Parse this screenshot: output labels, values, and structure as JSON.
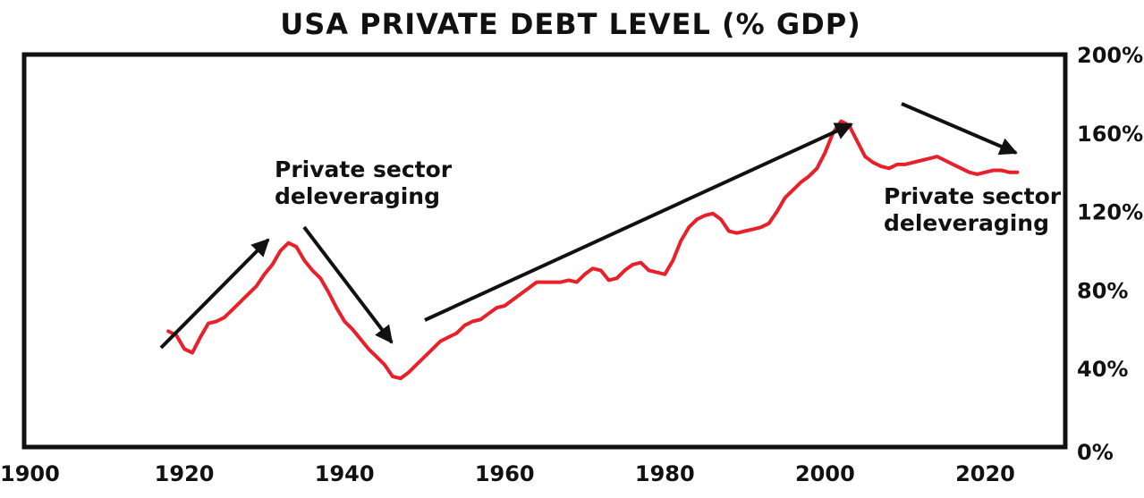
{
  "chart_data": {
    "type": "line",
    "title": "USA PRIVATE DEBT LEVEL (% GDP)",
    "xlabel": "",
    "ylabel": "",
    "xlim": [
      1900,
      2030
    ],
    "ylim": [
      0,
      200
    ],
    "x_ticks": [
      "1900",
      "1920",
      "1940",
      "1960",
      "1980",
      "2000",
      "2020"
    ],
    "y_ticks": [
      "0%",
      "40%",
      "80%",
      "120%",
      "160%",
      "200%"
    ],
    "y_axis_side": "right",
    "grid": false,
    "colors": {
      "line": "#e8202a",
      "arrow": "#111111",
      "frame": "#111111"
    },
    "series": [
      {
        "x": [
          1918,
          1919,
          1920,
          1921,
          1922,
          1923,
          1924,
          1925,
          1926,
          1927,
          1928,
          1929,
          1930,
          1931,
          1932,
          1933,
          1934,
          1935,
          1936,
          1937,
          1938,
          1939,
          1940,
          1941,
          1942,
          1943,
          1944,
          1945,
          1946,
          1947,
          1948,
          1949,
          1950,
          1951,
          1952,
          1953,
          1954,
          1955,
          1956,
          1957,
          1958,
          1959,
          1960,
          1961,
          1962,
          1963,
          1964,
          1965,
          1966,
          1967,
          1968,
          1969,
          1970,
          1971,
          1972,
          1973,
          1974,
          1975,
          1976,
          1977,
          1978,
          1979,
          1980,
          1981,
          1982,
          1983,
          1984,
          1985,
          1986,
          1987,
          1988,
          1989,
          1990,
          1991,
          1992,
          1993,
          1994,
          1995,
          1996,
          1997,
          1998,
          1999,
          2000,
          2001,
          2002,
          2003,
          2004,
          2005,
          2006,
          2007,
          2008,
          2009,
          2010,
          2011,
          2012,
          2013,
          2014,
          2015,
          2016,
          2017,
          2018,
          2019,
          2020,
          2021,
          2022,
          2023,
          2024
        ],
        "y": [
          59,
          57,
          50,
          48,
          56,
          63,
          64,
          66,
          70,
          74,
          78,
          82,
          88,
          93,
          100,
          104,
          102,
          95,
          90,
          86,
          79,
          71,
          64,
          60,
          55,
          50,
          46,
          42,
          36,
          35,
          38,
          42,
          46,
          50,
          54,
          56,
          58,
          62,
          64,
          65,
          68,
          71,
          72,
          75,
          78,
          81,
          84,
          84,
          84,
          84,
          85,
          84,
          88,
          91,
          90,
          85,
          86,
          90,
          93,
          94,
          90,
          89,
          88,
          95,
          105,
          112,
          116,
          118,
          119,
          116,
          110,
          109,
          110,
          111,
          112,
          114,
          120,
          127,
          131,
          135,
          138,
          142,
          150,
          160,
          166,
          164,
          156,
          148,
          145,
          143,
          142,
          144,
          144,
          145,
          146,
          147,
          148,
          146,
          144,
          142,
          140,
          139,
          140,
          141,
          141,
          140,
          140
        ],
        "note": "approximate values read from the drawn curve"
      }
    ],
    "annotations": [
      {
        "text_lines": [
          "Private sector",
          "deleveraging"
        ],
        "position": "left, above 1930s peak"
      },
      {
        "text_lines": [
          "Private sector",
          "deleveraging"
        ],
        "position": "right, below 2008 peak"
      }
    ]
  }
}
